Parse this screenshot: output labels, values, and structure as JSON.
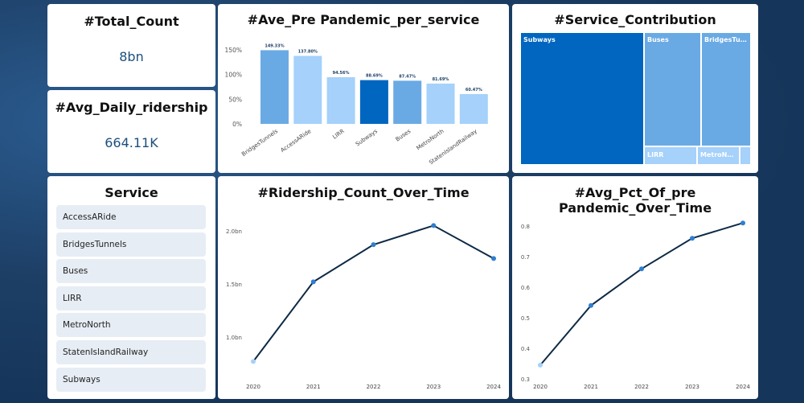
{
  "kpis": {
    "total_title": "#Total_Count",
    "total_value": "8bn",
    "avg_title": "#Avg_Daily_ridership",
    "avg_value": "664.11K"
  },
  "slicer": {
    "title": "Service",
    "items": [
      "AccessARide",
      "BridgesTunnels",
      "Buses",
      "LIRR",
      "MetroNorth",
      "StatenIslandRailway",
      "Subways"
    ]
  },
  "treemap": {
    "title": "#Service_Contribution",
    "items": [
      {
        "label": "Subways",
        "color": "#0066bf"
      },
      {
        "label": "Buses",
        "color": "#6aaae4"
      },
      {
        "label": "BridgesTunnels",
        "color": "#6aaae4"
      },
      {
        "label": "LIRR",
        "color": "#a5d1fa"
      },
      {
        "label": "MetroNorth",
        "color": "#a5d1fa"
      },
      {
        "label": "",
        "color": "#a5d1fa"
      }
    ]
  },
  "chart_data": [
    {
      "type": "bar",
      "title": "#Ave_Pre Pandemic_per_service",
      "categories": [
        "BridgesTunnels",
        "AccessARide",
        "LIRR",
        "Subways",
        "Buses",
        "MetroNorth",
        "StatenIslandRailway"
      ],
      "values": [
        149.33,
        137.8,
        94.56,
        88.69,
        87.47,
        81.69,
        60.47
      ],
      "data_labels": [
        "149.33%",
        "137.80%",
        "94.56%",
        "88.69%",
        "87.47%",
        "81.69%",
        "60.47%"
      ],
      "colors": [
        "#6aaae4",
        "#a5d1fa",
        "#a5d1fa",
        "#0066bf",
        "#6aaae4",
        "#a5d1fa",
        "#a5d1fa"
      ],
      "yticks": [
        "0%",
        "50%",
        "100%",
        "150%"
      ],
      "ylim": [
        0,
        150
      ]
    },
    {
      "type": "line",
      "title": "#Ridership_Count_Over_Time",
      "x": [
        "2020",
        "2021",
        "2022",
        "2023",
        "2024"
      ],
      "values": [
        0.77,
        1.52,
        1.87,
        2.05,
        1.74
      ],
      "yticks": [
        {
          "v": 1.0,
          "label": "1.0bn"
        },
        {
          "v": 1.5,
          "label": "1.5bn"
        },
        {
          "v": 2.0,
          "label": "2.0bn"
        }
      ]
    },
    {
      "type": "line",
      "title": "#Avg_Pct_Of_pre Pandemic_Over_Time",
      "x": [
        "2020",
        "2021",
        "2022",
        "2023",
        "2024"
      ],
      "values": [
        0.345,
        0.54,
        0.66,
        0.76,
        0.81
      ],
      "yticks": [
        {
          "v": 0.3,
          "label": "0.3"
        },
        {
          "v": 0.4,
          "label": "0.4"
        },
        {
          "v": 0.5,
          "label": "0.5"
        },
        {
          "v": 0.6,
          "label": "0.6"
        },
        {
          "v": 0.7,
          "label": "0.7"
        },
        {
          "v": 0.8,
          "label": "0.8"
        }
      ]
    }
  ],
  "colors": {
    "line": "#0d2a45",
    "point": "#2f7fd0",
    "point_first": "#a5d1fa"
  }
}
